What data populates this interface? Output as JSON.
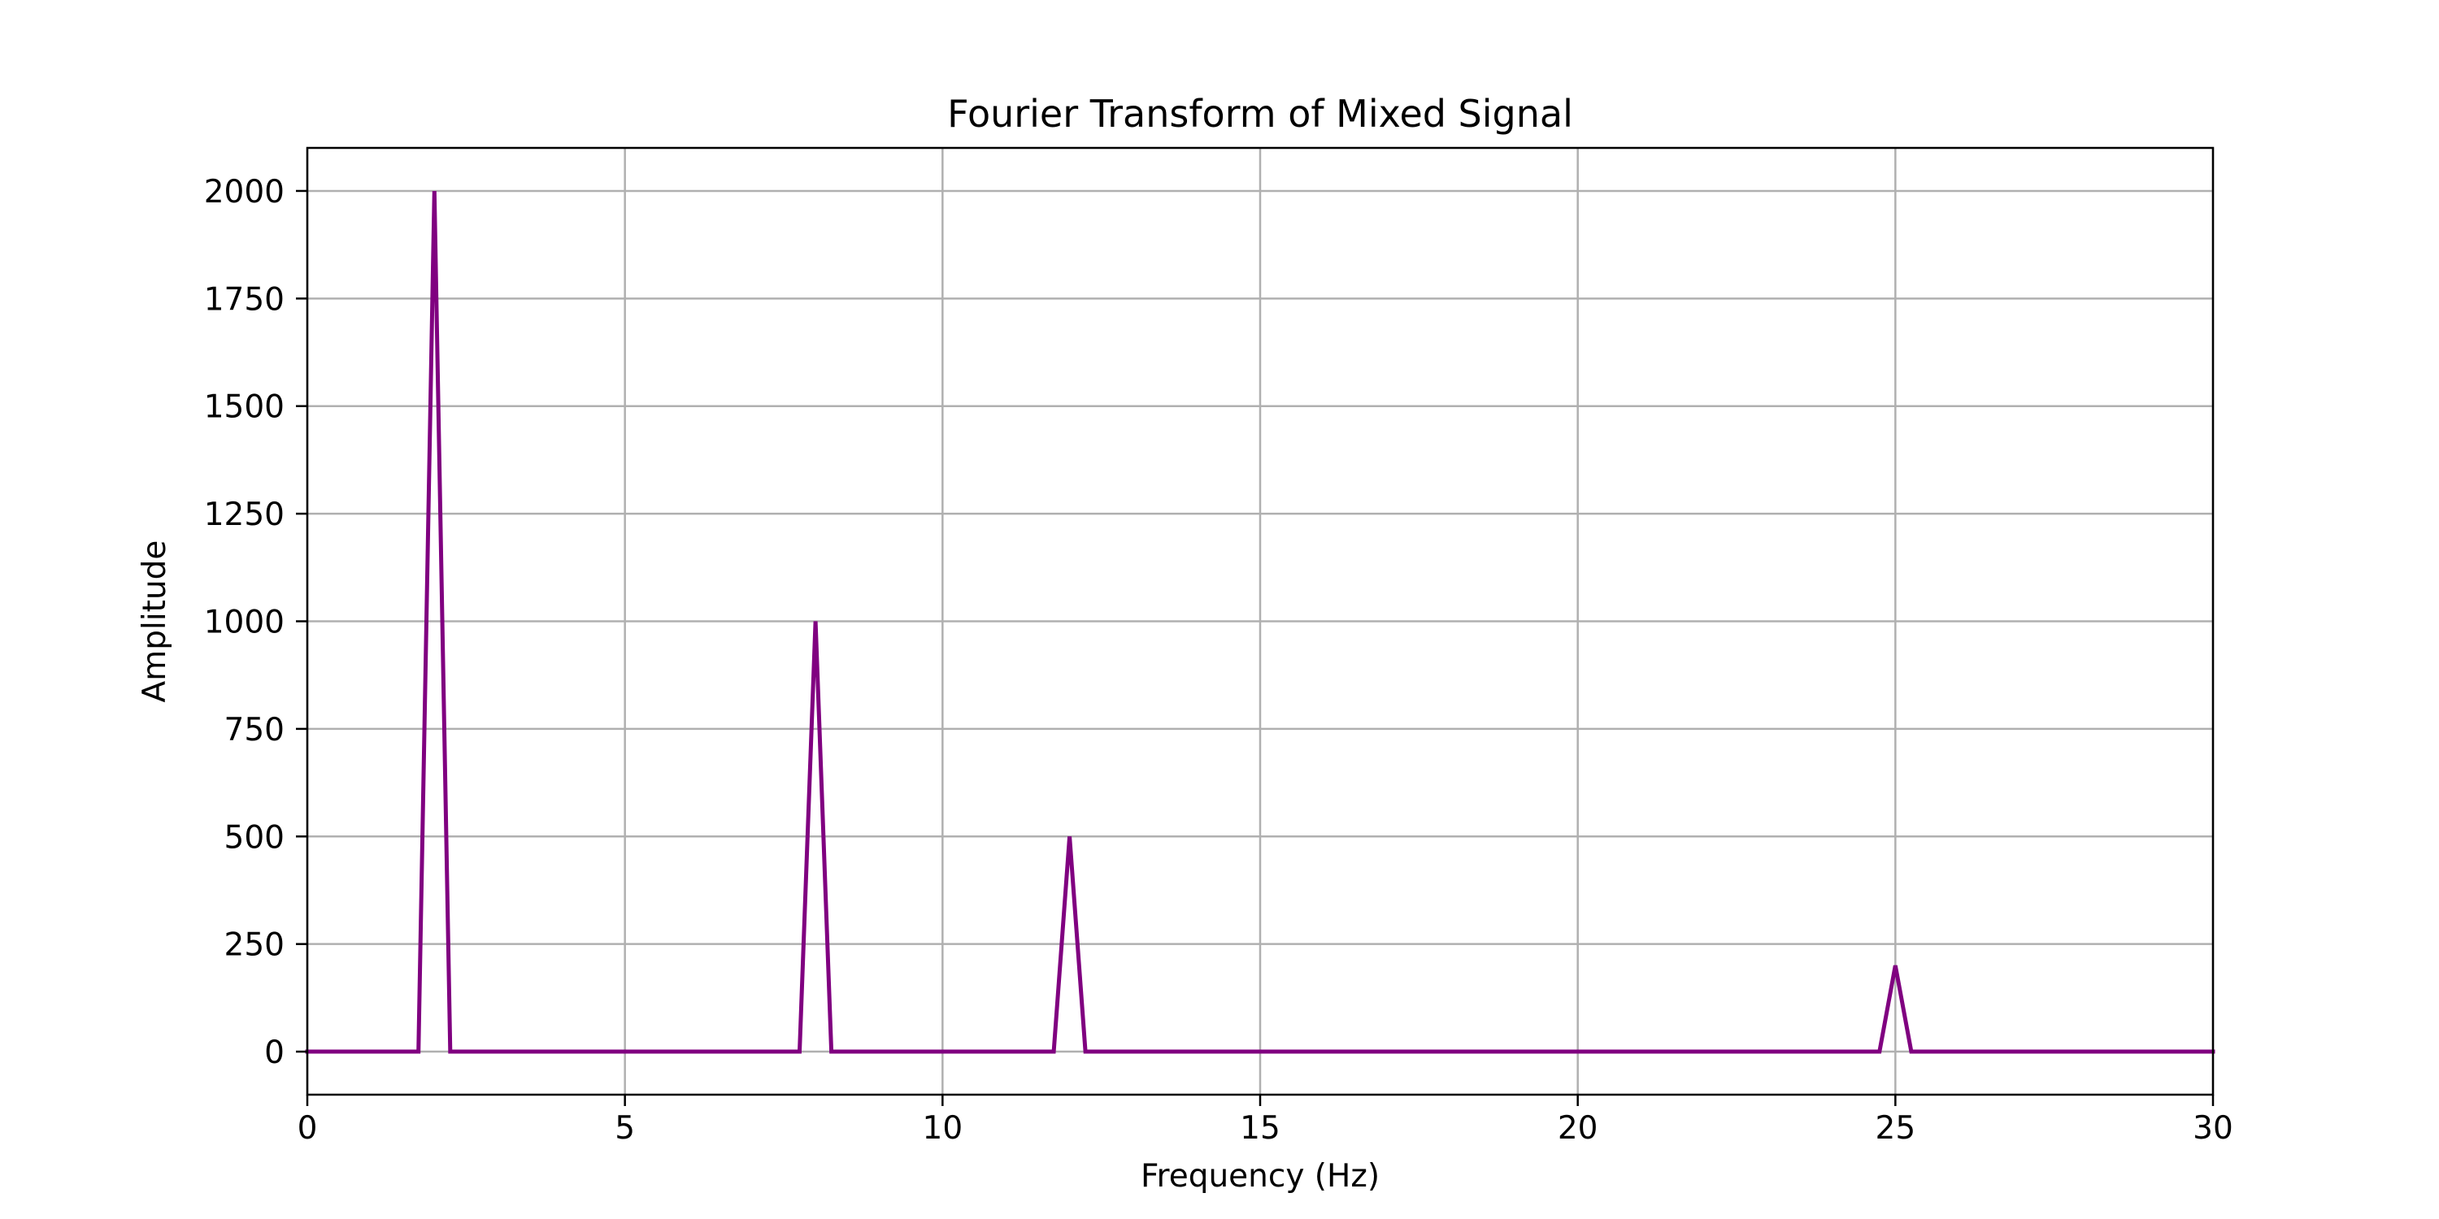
{
  "chart_data": {
    "type": "line",
    "title": "Fourier Transform of Mixed Signal",
    "xlabel": "Frequency (Hz)",
    "ylabel": "Amplitude",
    "xlim": [
      0,
      30
    ],
    "ylim": [
      -100,
      2100
    ],
    "x_ticks": [
      0,
      5,
      10,
      15,
      20,
      25,
      30
    ],
    "y_ticks": [
      0,
      250,
      500,
      750,
      1000,
      1250,
      1500,
      1750,
      2000
    ],
    "grid": true,
    "legend": "none",
    "series": [
      {
        "color": "#800080",
        "x": [
          0,
          1.75,
          2.0,
          2.25,
          7.75,
          8.0,
          8.25,
          11.75,
          12.0,
          12.25,
          24.75,
          25.0,
          25.25,
          30
        ],
        "y": [
          0,
          0,
          2000,
          0,
          0,
          1000,
          0,
          0,
          500,
          0,
          0,
          200,
          0,
          0
        ]
      }
    ]
  }
}
